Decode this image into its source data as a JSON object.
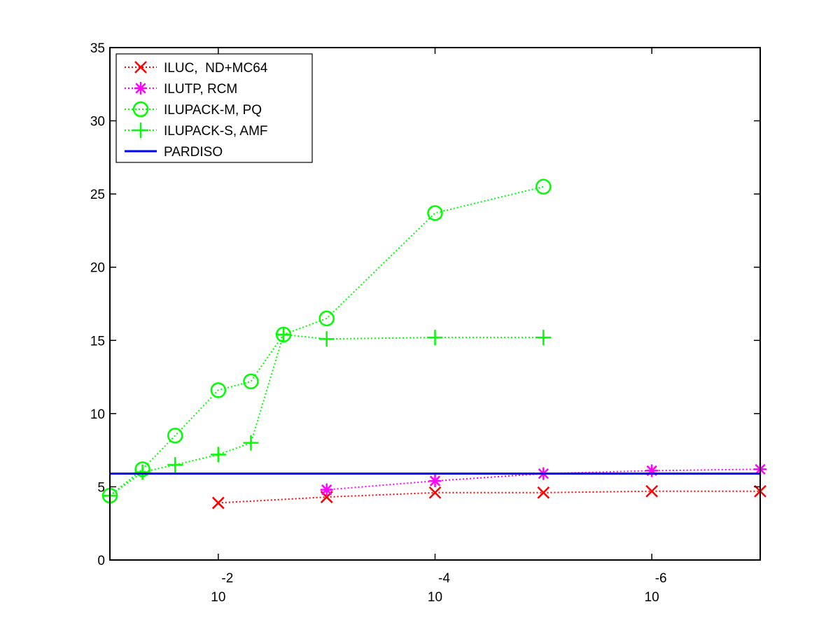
{
  "chart_data": {
    "type": "line",
    "x_scale": "log",
    "x_direction": "descending",
    "xlim": [
      0.1,
      1e-07
    ],
    "ylim": [
      0,
      35
    ],
    "y_ticks": [
      0,
      5,
      10,
      15,
      20,
      25,
      30,
      35
    ],
    "x_ticks": [
      {
        "value": 0.01,
        "base": "10",
        "exp": "-2"
      },
      {
        "value": 0.0001,
        "base": "10",
        "exp": "-4"
      },
      {
        "value": 1e-06,
        "base": "10",
        "exp": "-6"
      }
    ],
    "legend_position": "top-left",
    "grid": false,
    "series": [
      {
        "name": "ILUC,  ND+MC64",
        "color": "#ff0000",
        "marker": "x",
        "line": "dotted",
        "x": [
          0.01,
          0.001,
          0.0001,
          1e-05,
          1e-06,
          1e-07
        ],
        "y": [
          3.9,
          4.3,
          4.6,
          4.6,
          4.7,
          4.7
        ]
      },
      {
        "name": "ILUTP, RCM",
        "color": "#ff00ff",
        "marker": "star",
        "line": "dotted",
        "x": [
          0.001,
          0.0001,
          1e-05,
          1e-06,
          1e-07
        ],
        "y": [
          4.8,
          5.4,
          5.9,
          6.1,
          6.2
        ]
      },
      {
        "name": "ILUPACK-M, PQ",
        "color": "#00ff00",
        "marker": "circle",
        "line": "dotted",
        "x": [
          0.1,
          0.05,
          0.025,
          0.01,
          0.005,
          0.0025,
          0.001,
          0.0001,
          1e-05
        ],
        "y": [
          4.4,
          6.2,
          8.5,
          11.6,
          12.2,
          15.4,
          16.5,
          23.7,
          25.5
        ]
      },
      {
        "name": "ILUPACK-S, AMF",
        "color": "#00ff00",
        "marker": "plus",
        "line": "dotted",
        "x": [
          0.1,
          0.05,
          0.025,
          0.01,
          0.005,
          0.0025,
          0.001,
          0.0001,
          1e-05
        ],
        "y": [
          4.4,
          6.0,
          6.5,
          7.2,
          8.0,
          15.4,
          15.1,
          15.2,
          15.2
        ]
      },
      {
        "name": "PARDISO",
        "color": "#0000ff",
        "marker": "none",
        "line": "solid",
        "x": [
          0.1,
          1e-07
        ],
        "y": [
          5.9,
          5.9
        ]
      }
    ]
  }
}
